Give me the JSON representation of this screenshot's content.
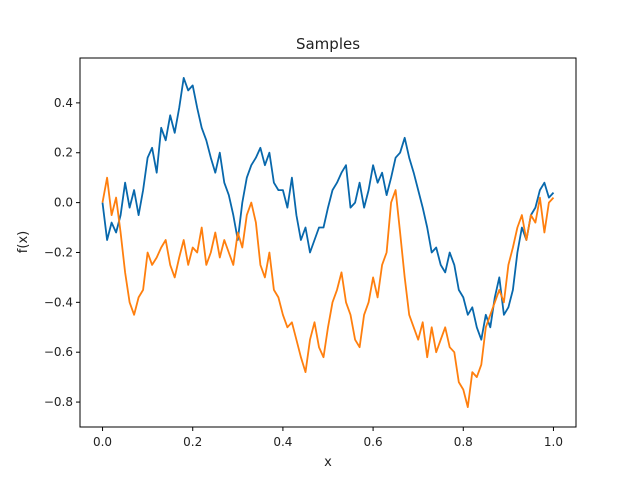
{
  "chart_data": {
    "type": "line",
    "title": "Samples",
    "xlabel": "x",
    "ylabel": "f(x)",
    "xlim": [
      -0.05,
      1.05
    ],
    "ylim": [
      -0.9,
      0.58
    ],
    "xticks": [
      0.0,
      0.2,
      0.4,
      0.6,
      0.8,
      1.0
    ],
    "xtick_labels": [
      "0.0",
      "0.2",
      "0.4",
      "0.6",
      "0.8",
      "1.0"
    ],
    "yticks": [
      -0.8,
      -0.6,
      -0.4,
      -0.2,
      0.0,
      0.2,
      0.4
    ],
    "ytick_labels": [
      "−0.8",
      "−0.6",
      "−0.4",
      "−0.2",
      "0.0",
      "0.2",
      "0.4"
    ],
    "grid": false,
    "legend": "none",
    "series": [
      {
        "color": "#0868ac",
        "x": [
          0.0,
          0.01,
          0.02,
          0.03,
          0.04,
          0.05,
          0.06,
          0.07,
          0.08,
          0.09,
          0.1,
          0.11,
          0.12,
          0.13,
          0.14,
          0.15,
          0.16,
          0.17,
          0.18,
          0.19,
          0.2,
          0.21,
          0.22,
          0.23,
          0.24,
          0.25,
          0.26,
          0.27,
          0.28,
          0.29,
          0.3,
          0.31,
          0.32,
          0.33,
          0.34,
          0.35,
          0.36,
          0.37,
          0.38,
          0.39,
          0.4,
          0.41,
          0.42,
          0.43,
          0.44,
          0.45,
          0.46,
          0.47,
          0.48,
          0.49,
          0.5,
          0.51,
          0.52,
          0.53,
          0.54,
          0.55,
          0.56,
          0.57,
          0.58,
          0.59,
          0.6,
          0.61,
          0.62,
          0.63,
          0.64,
          0.65,
          0.66,
          0.67,
          0.68,
          0.69,
          0.7,
          0.71,
          0.72,
          0.73,
          0.74,
          0.75,
          0.76,
          0.77,
          0.78,
          0.79,
          0.8,
          0.81,
          0.82,
          0.83,
          0.84,
          0.85,
          0.86,
          0.87,
          0.88,
          0.89,
          0.9,
          0.91,
          0.92,
          0.93,
          0.94,
          0.95,
          0.96,
          0.97,
          0.98,
          0.99,
          1.0
        ],
        "y": [
          0.0,
          -0.15,
          -0.08,
          -0.12,
          -0.05,
          0.08,
          -0.02,
          0.05,
          -0.05,
          0.05,
          0.18,
          0.22,
          0.12,
          0.3,
          0.25,
          0.35,
          0.28,
          0.38,
          0.5,
          0.45,
          0.47,
          0.38,
          0.3,
          0.25,
          0.18,
          0.12,
          0.2,
          0.08,
          0.03,
          -0.05,
          -0.15,
          0.0,
          0.1,
          0.15,
          0.18,
          0.22,
          0.15,
          0.2,
          0.08,
          0.05,
          0.05,
          -0.02,
          0.1,
          -0.05,
          -0.15,
          -0.1,
          -0.2,
          -0.15,
          -0.1,
          -0.1,
          -0.02,
          0.05,
          0.08,
          0.12,
          0.15,
          -0.02,
          0.0,
          0.08,
          -0.02,
          0.05,
          0.15,
          0.08,
          0.12,
          0.03,
          0.1,
          0.18,
          0.2,
          0.26,
          0.18,
          0.12,
          0.05,
          -0.02,
          -0.1,
          -0.2,
          -0.18,
          -0.25,
          -0.28,
          -0.2,
          -0.25,
          -0.35,
          -0.38,
          -0.45,
          -0.42,
          -0.5,
          -0.55,
          -0.45,
          -0.5,
          -0.38,
          -0.3,
          -0.45,
          -0.42,
          -0.35,
          -0.2,
          -0.1,
          -0.15,
          -0.05,
          -0.02,
          0.05,
          0.08,
          0.02,
          0.04
        ]
      },
      {
        "color": "#ff7f0e",
        "x": [
          0.0,
          0.01,
          0.02,
          0.03,
          0.04,
          0.05,
          0.06,
          0.07,
          0.08,
          0.09,
          0.1,
          0.11,
          0.12,
          0.13,
          0.14,
          0.15,
          0.16,
          0.17,
          0.18,
          0.19,
          0.2,
          0.21,
          0.22,
          0.23,
          0.24,
          0.25,
          0.26,
          0.27,
          0.28,
          0.29,
          0.3,
          0.31,
          0.32,
          0.33,
          0.34,
          0.35,
          0.36,
          0.37,
          0.38,
          0.39,
          0.4,
          0.41,
          0.42,
          0.43,
          0.44,
          0.45,
          0.46,
          0.47,
          0.48,
          0.49,
          0.5,
          0.51,
          0.52,
          0.53,
          0.54,
          0.55,
          0.56,
          0.57,
          0.58,
          0.59,
          0.6,
          0.61,
          0.62,
          0.63,
          0.64,
          0.65,
          0.66,
          0.67,
          0.68,
          0.69,
          0.7,
          0.71,
          0.72,
          0.73,
          0.74,
          0.75,
          0.76,
          0.77,
          0.78,
          0.79,
          0.8,
          0.81,
          0.82,
          0.83,
          0.84,
          0.85,
          0.86,
          0.87,
          0.88,
          0.89,
          0.9,
          0.91,
          0.92,
          0.93,
          0.94,
          0.95,
          0.96,
          0.97,
          0.98,
          0.99,
          1.0
        ],
        "y": [
          0.0,
          0.1,
          -0.05,
          0.02,
          -0.12,
          -0.28,
          -0.4,
          -0.45,
          -0.38,
          -0.35,
          -0.2,
          -0.25,
          -0.22,
          -0.18,
          -0.15,
          -0.25,
          -0.3,
          -0.22,
          -0.15,
          -0.25,
          -0.18,
          -0.2,
          -0.1,
          -0.25,
          -0.2,
          -0.12,
          -0.22,
          -0.15,
          -0.2,
          -0.25,
          -0.12,
          -0.18,
          -0.05,
          0.0,
          -0.08,
          -0.25,
          -0.3,
          -0.2,
          -0.35,
          -0.38,
          -0.45,
          -0.5,
          -0.48,
          -0.55,
          -0.62,
          -0.68,
          -0.55,
          -0.48,
          -0.58,
          -0.62,
          -0.5,
          -0.4,
          -0.35,
          -0.28,
          -0.4,
          -0.45,
          -0.55,
          -0.58,
          -0.45,
          -0.4,
          -0.3,
          -0.38,
          -0.25,
          -0.2,
          0.0,
          0.05,
          -0.12,
          -0.3,
          -0.45,
          -0.5,
          -0.55,
          -0.48,
          -0.62,
          -0.5,
          -0.6,
          -0.55,
          -0.5,
          -0.58,
          -0.6,
          -0.72,
          -0.75,
          -0.82,
          -0.68,
          -0.7,
          -0.65,
          -0.5,
          -0.45,
          -0.4,
          -0.35,
          -0.4,
          -0.25,
          -0.18,
          -0.1,
          -0.05,
          -0.15,
          -0.05,
          -0.08,
          0.02,
          -0.12,
          0.0,
          0.02
        ]
      }
    ]
  }
}
